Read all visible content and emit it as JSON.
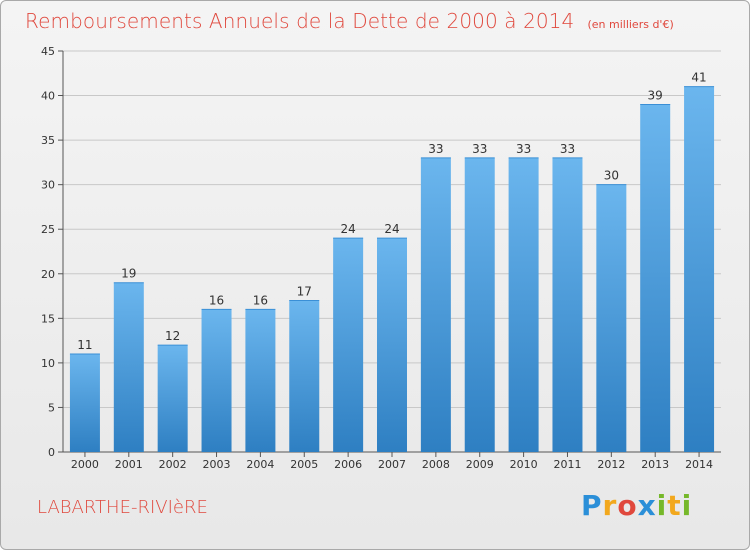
{
  "title": "Remboursements Annuels de la Dette de 2000 à 2014",
  "subtitle": "(en milliers d'€)",
  "commune": "LABARTHE-RIVIèRE",
  "logo": {
    "letters": [
      {
        "char": "P",
        "color": "#2b8fd8"
      },
      {
        "char": "r",
        "color": "#f2a81d"
      },
      {
        "char": "o",
        "color": "#e0483d"
      },
      {
        "char": "x",
        "color": "#2b8fd8"
      },
      {
        "char": "i",
        "color": "#76b82a"
      },
      {
        "char": "t",
        "color": "#f2a81d"
      },
      {
        "char": "i",
        "color": "#76b82a"
      }
    ]
  },
  "colors": {
    "bar_top": "#6bb6ee",
    "bar_bottom": "#2e7fc2",
    "title": "#e0483d",
    "grid": "#c8c8c8"
  },
  "chart_data": {
    "type": "bar",
    "categories": [
      "2000",
      "2001",
      "2002",
      "2003",
      "2004",
      "2005",
      "2006",
      "2007",
      "2008",
      "2009",
      "2010",
      "2011",
      "2012",
      "2013",
      "2014"
    ],
    "values": [
      11,
      19,
      12,
      16,
      16,
      17,
      24,
      24,
      33,
      33,
      33,
      33,
      30,
      39,
      41
    ],
    "ylim": [
      0,
      45
    ],
    "yticks": [
      0,
      5,
      10,
      15,
      20,
      25,
      30,
      35,
      40,
      45
    ],
    "grid": true,
    "legend": "none"
  }
}
